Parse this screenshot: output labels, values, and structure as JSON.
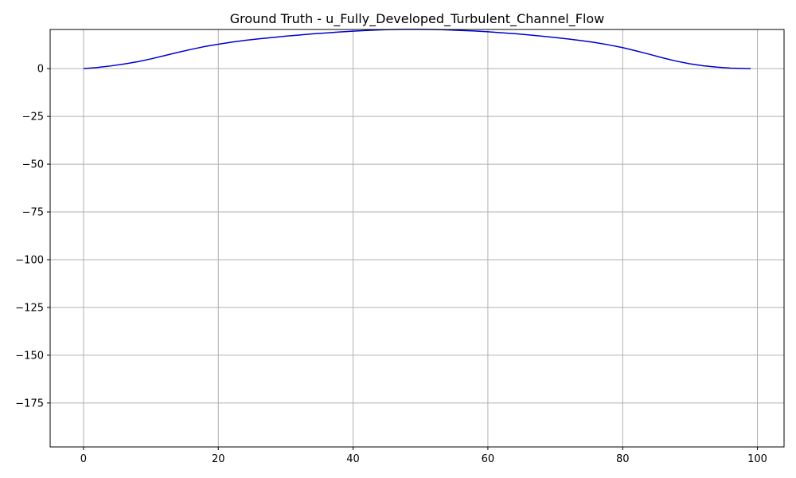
{
  "chart_data": {
    "type": "line",
    "title": "Ground Truth - u_Fully_Developed_Turbulent_Channel_Flow",
    "xlabel": "",
    "ylabel": "",
    "xlim": [
      -4.95,
      103.95
    ],
    "ylim": [
      -198,
      20.5
    ],
    "xticks": [
      0,
      20,
      40,
      60,
      80,
      100
    ],
    "yticks": [
      0,
      -25,
      -50,
      -75,
      -100,
      -125,
      -150,
      -175
    ],
    "grid": true,
    "line_color": "#0000cd",
    "grid_color": "#b0b0b0",
    "series": [
      {
        "x": [
          0,
          2,
          4,
          6,
          8,
          10,
          12,
          14,
          16,
          18,
          20,
          22,
          24,
          26,
          28,
          30,
          32,
          34,
          36,
          38,
          40,
          42,
          44,
          46,
          48,
          50,
          52,
          54,
          56,
          58,
          60,
          62,
          64,
          66,
          68,
          70,
          72,
          74,
          76,
          78,
          80,
          82,
          84,
          86,
          88,
          90,
          92,
          94,
          96,
          98,
          99
        ],
        "y": [
          0,
          0.6,
          1.4,
          2.4,
          3.6,
          5.1,
          6.8,
          8.5,
          10.1,
          11.6,
          12.8,
          13.9,
          14.8,
          15.6,
          16.3,
          17.0,
          17.6,
          18.2,
          18.7,
          19.2,
          19.6,
          20.0,
          20.3,
          20.5,
          20.6,
          20.6,
          20.5,
          20.3,
          20.0,
          19.7,
          19.3,
          18.8,
          18.3,
          17.7,
          17.0,
          16.3,
          15.5,
          14.6,
          13.6,
          12.4,
          11.0,
          9.3,
          7.5,
          5.6,
          3.9,
          2.5,
          1.5,
          0.8,
          0.3,
          0.05,
          0
        ]
      }
    ]
  }
}
